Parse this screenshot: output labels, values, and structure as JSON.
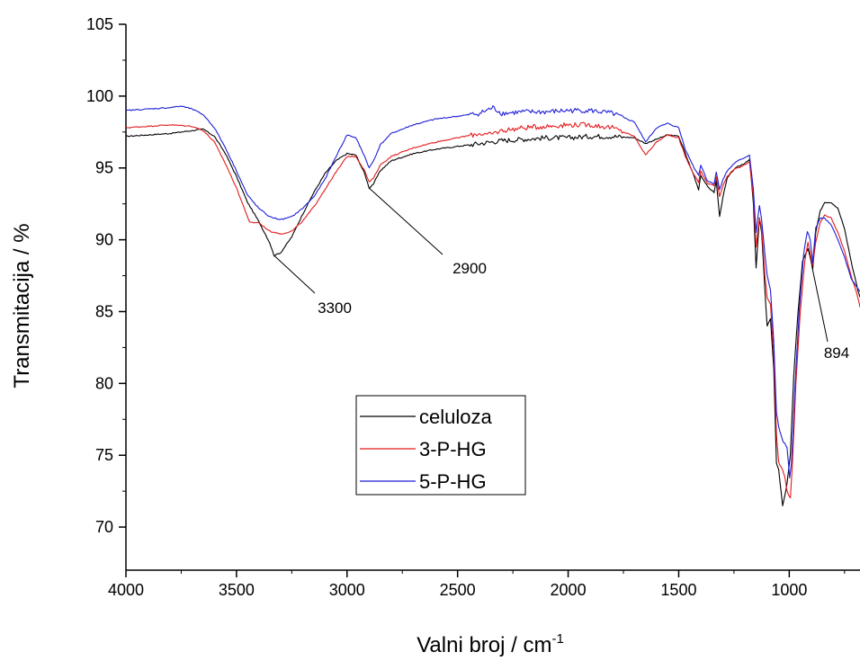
{
  "chart_data": {
    "type": "line",
    "xlabel": "Valni broj / cm",
    "xlabel_superscript": "-1",
    "ylabel": "Transmitacija / %",
    "xlim": [
      4000,
      680
    ],
    "ylim": [
      67,
      105
    ],
    "x_reversed": true,
    "x_ticks": [
      4000,
      3500,
      3000,
      2500,
      2000,
      1500,
      1000
    ],
    "y_ticks": [
      70,
      75,
      80,
      85,
      90,
      95,
      100,
      105
    ],
    "grid": false,
    "legend_position": "lower-center",
    "series": [
      {
        "name": "celuloza",
        "color": "#000000",
        "points": [
          [
            4000,
            97.2
          ],
          [
            3900,
            97.3
          ],
          [
            3800,
            97.4
          ],
          [
            3700,
            97.6
          ],
          [
            3650,
            97.7
          ],
          [
            3600,
            97.2
          ],
          [
            3550,
            96
          ],
          [
            3500,
            94.4
          ],
          [
            3450,
            92.6
          ],
          [
            3400,
            91.3
          ],
          [
            3350,
            89.8
          ],
          [
            3330,
            88.9
          ],
          [
            3300,
            89.1
          ],
          [
            3250,
            90.2
          ],
          [
            3200,
            91.8
          ],
          [
            3150,
            93.3
          ],
          [
            3100,
            94.6
          ],
          [
            3050,
            95.5
          ],
          [
            3000,
            96
          ],
          [
            2960,
            95.9
          ],
          [
            2920,
            94.6
          ],
          [
            2900,
            93.6
          ],
          [
            2880,
            93.9
          ],
          [
            2850,
            94.8
          ],
          [
            2800,
            95.5
          ],
          [
            2700,
            96
          ],
          [
            2600,
            96.3
          ],
          [
            2500,
            96.5
          ],
          [
            2400,
            96.7
          ],
          [
            2300,
            96.9
          ],
          [
            2200,
            97
          ],
          [
            2100,
            97.1
          ],
          [
            2000,
            97.1
          ],
          [
            1900,
            97.2
          ],
          [
            1800,
            97.2
          ],
          [
            1700,
            97.1
          ],
          [
            1650,
            96.7
          ],
          [
            1600,
            97
          ],
          [
            1550,
            97.3
          ],
          [
            1500,
            97.2
          ],
          [
            1470,
            96
          ],
          [
            1430,
            94.4
          ],
          [
            1410,
            93.5
          ],
          [
            1400,
            94.5
          ],
          [
            1370,
            93.7
          ],
          [
            1340,
            93.3
          ],
          [
            1330,
            94.1
          ],
          [
            1315,
            91.6
          ],
          [
            1300,
            93
          ],
          [
            1280,
            94.3
          ],
          [
            1250,
            94.9
          ],
          [
            1230,
            95.1
          ],
          [
            1205,
            95.3
          ],
          [
            1180,
            95.6
          ],
          [
            1162,
            92.5
          ],
          [
            1150,
            88
          ],
          [
            1135,
            91.5
          ],
          [
            1125,
            90.5
          ],
          [
            1110,
            86.5
          ],
          [
            1100,
            84
          ],
          [
            1085,
            84.5
          ],
          [
            1070,
            81
          ],
          [
            1058,
            74.5
          ],
          [
            1048,
            74
          ],
          [
            1030,
            71.5
          ],
          [
            1020,
            72.2
          ],
          [
            1010,
            73
          ],
          [
            995,
            75
          ],
          [
            980,
            80.5
          ],
          [
            960,
            85
          ],
          [
            940,
            88.5
          ],
          [
            915,
            89.4
          ],
          [
            900,
            88.4
          ],
          [
            894,
            87.9
          ],
          [
            880,
            90.5
          ],
          [
            860,
            92
          ],
          [
            840,
            92.6
          ],
          [
            810,
            92.6
          ],
          [
            780,
            92.2
          ],
          [
            750,
            90.8
          ],
          [
            720,
            88.5
          ],
          [
            690,
            86.5
          ],
          [
            680,
            86
          ]
        ]
      },
      {
        "name": "3-P-HG",
        "color": "#e41a1c",
        "points": [
          [
            4000,
            97.8
          ],
          [
            3900,
            97.9
          ],
          [
            3800,
            98
          ],
          [
            3700,
            97.9
          ],
          [
            3650,
            97.6
          ],
          [
            3600,
            96.8
          ],
          [
            3550,
            95.3
          ],
          [
            3500,
            93.6
          ],
          [
            3460,
            92
          ],
          [
            3440,
            91.2
          ],
          [
            3400,
            91.2
          ],
          [
            3350,
            90.6
          ],
          [
            3300,
            90.4
          ],
          [
            3250,
            90.6
          ],
          [
            3200,
            91.3
          ],
          [
            3150,
            92.3
          ],
          [
            3100,
            93.5
          ],
          [
            3050,
            94.7
          ],
          [
            3000,
            95.8
          ],
          [
            2960,
            95.8
          ],
          [
            2920,
            94.8
          ],
          [
            2900,
            94
          ],
          [
            2880,
            94.3
          ],
          [
            2850,
            95.2
          ],
          [
            2800,
            95.8
          ],
          [
            2700,
            96.4
          ],
          [
            2600,
            96.8
          ],
          [
            2500,
            97.1
          ],
          [
            2400,
            97.4
          ],
          [
            2360,
            97.3
          ],
          [
            2300,
            97.6
          ],
          [
            2200,
            97.8
          ],
          [
            2100,
            97.9
          ],
          [
            2000,
            98
          ],
          [
            1900,
            98
          ],
          [
            1800,
            97.8
          ],
          [
            1700,
            97.2
          ],
          [
            1650,
            95.9
          ],
          [
            1600,
            96.8
          ],
          [
            1550,
            97.3
          ],
          [
            1500,
            97.1
          ],
          [
            1470,
            95.8
          ],
          [
            1430,
            94.5
          ],
          [
            1410,
            94
          ],
          [
            1400,
            94.8
          ],
          [
            1370,
            93.9
          ],
          [
            1340,
            93.8
          ],
          [
            1330,
            94.4
          ],
          [
            1315,
            93
          ],
          [
            1300,
            93.8
          ],
          [
            1280,
            94.4
          ],
          [
            1250,
            94.9
          ],
          [
            1230,
            95
          ],
          [
            1205,
            95.2
          ],
          [
            1180,
            95.4
          ],
          [
            1162,
            93
          ],
          [
            1150,
            89.5
          ],
          [
            1135,
            91.5
          ],
          [
            1125,
            90.8
          ],
          [
            1110,
            87.5
          ],
          [
            1100,
            86
          ],
          [
            1085,
            85.5
          ],
          [
            1070,
            82
          ],
          [
            1058,
            76.5
          ],
          [
            1048,
            74.5
          ],
          [
            1030,
            74
          ],
          [
            1020,
            73.5
          ],
          [
            1010,
            72.5
          ],
          [
            995,
            72
          ],
          [
            985,
            74.5
          ],
          [
            970,
            80
          ],
          [
            950,
            85
          ],
          [
            930,
            88.5
          ],
          [
            915,
            89.8
          ],
          [
            900,
            88.6
          ],
          [
            894,
            88.2
          ],
          [
            880,
            89.8
          ],
          [
            860,
            91.2
          ],
          [
            840,
            91.7
          ],
          [
            810,
            91.5
          ],
          [
            780,
            90.5
          ],
          [
            750,
            89.2
          ],
          [
            720,
            87.5
          ],
          [
            690,
            86
          ],
          [
            680,
            85.3
          ]
        ]
      },
      {
        "name": "5-P-HG",
        "color": "#1f1fd6",
        "points": [
          [
            4000,
            99
          ],
          [
            3900,
            99.1
          ],
          [
            3800,
            99.2
          ],
          [
            3750,
            99.3
          ],
          [
            3700,
            99.1
          ],
          [
            3650,
            98.7
          ],
          [
            3600,
            97.8
          ],
          [
            3550,
            96.4
          ],
          [
            3500,
            94.8
          ],
          [
            3450,
            93.1
          ],
          [
            3400,
            92.2
          ],
          [
            3350,
            91.6
          ],
          [
            3300,
            91.4
          ],
          [
            3250,
            91.6
          ],
          [
            3200,
            92.2
          ],
          [
            3150,
            93
          ],
          [
            3100,
            94.2
          ],
          [
            3050,
            95.8
          ],
          [
            3000,
            97.3
          ],
          [
            2960,
            97.1
          ],
          [
            2920,
            95.8
          ],
          [
            2900,
            95
          ],
          [
            2880,
            95.5
          ],
          [
            2850,
            96.6
          ],
          [
            2800,
            97.4
          ],
          [
            2700,
            98
          ],
          [
            2600,
            98.4
          ],
          [
            2500,
            98.6
          ],
          [
            2400,
            98.8
          ],
          [
            2340,
            99.2
          ],
          [
            2300,
            98.8
          ],
          [
            2200,
            98.9
          ],
          [
            2100,
            98.9
          ],
          [
            2000,
            99
          ],
          [
            1900,
            99
          ],
          [
            1800,
            98.8
          ],
          [
            1700,
            98.2
          ],
          [
            1650,
            96.8
          ],
          [
            1600,
            97.8
          ],
          [
            1550,
            98.1
          ],
          [
            1500,
            97.8
          ],
          [
            1470,
            96.3
          ],
          [
            1430,
            95
          ],
          [
            1410,
            94.5
          ],
          [
            1400,
            95.2
          ],
          [
            1370,
            94.1
          ],
          [
            1340,
            93.9
          ],
          [
            1330,
            94.7
          ],
          [
            1315,
            93.5
          ],
          [
            1300,
            94.2
          ],
          [
            1280,
            94.8
          ],
          [
            1250,
            95.3
          ],
          [
            1230,
            95.5
          ],
          [
            1205,
            95.7
          ],
          [
            1180,
            95.9
          ],
          [
            1162,
            93.5
          ],
          [
            1150,
            90.5
          ],
          [
            1135,
            92.4
          ],
          [
            1125,
            91.4
          ],
          [
            1110,
            89
          ],
          [
            1100,
            87.5
          ],
          [
            1085,
            86.5
          ],
          [
            1070,
            83
          ],
          [
            1058,
            78
          ],
          [
            1048,
            77
          ],
          [
            1030,
            76
          ],
          [
            1020,
            75.8
          ],
          [
            1010,
            75.5
          ],
          [
            998,
            73.4
          ],
          [
            990,
            74.5
          ],
          [
            975,
            79.5
          ],
          [
            955,
            85
          ],
          [
            935,
            89
          ],
          [
            918,
            90.6
          ],
          [
            905,
            90
          ],
          [
            894,
            88.4
          ],
          [
            880,
            90.8
          ],
          [
            860,
            91.5
          ],
          [
            840,
            91.5
          ],
          [
            810,
            91
          ],
          [
            780,
            90
          ],
          [
            750,
            88.8
          ],
          [
            720,
            87.3
          ],
          [
            690,
            86.6
          ],
          [
            680,
            86.4
          ]
        ]
      }
    ],
    "annotations": [
      {
        "label": "3300",
        "x": 3330,
        "y": 88.9
      },
      {
        "label": "2900",
        "x": 2900,
        "y": 93.6
      },
      {
        "label": "894",
        "x": 894,
        "y": 87.9
      }
    ]
  }
}
